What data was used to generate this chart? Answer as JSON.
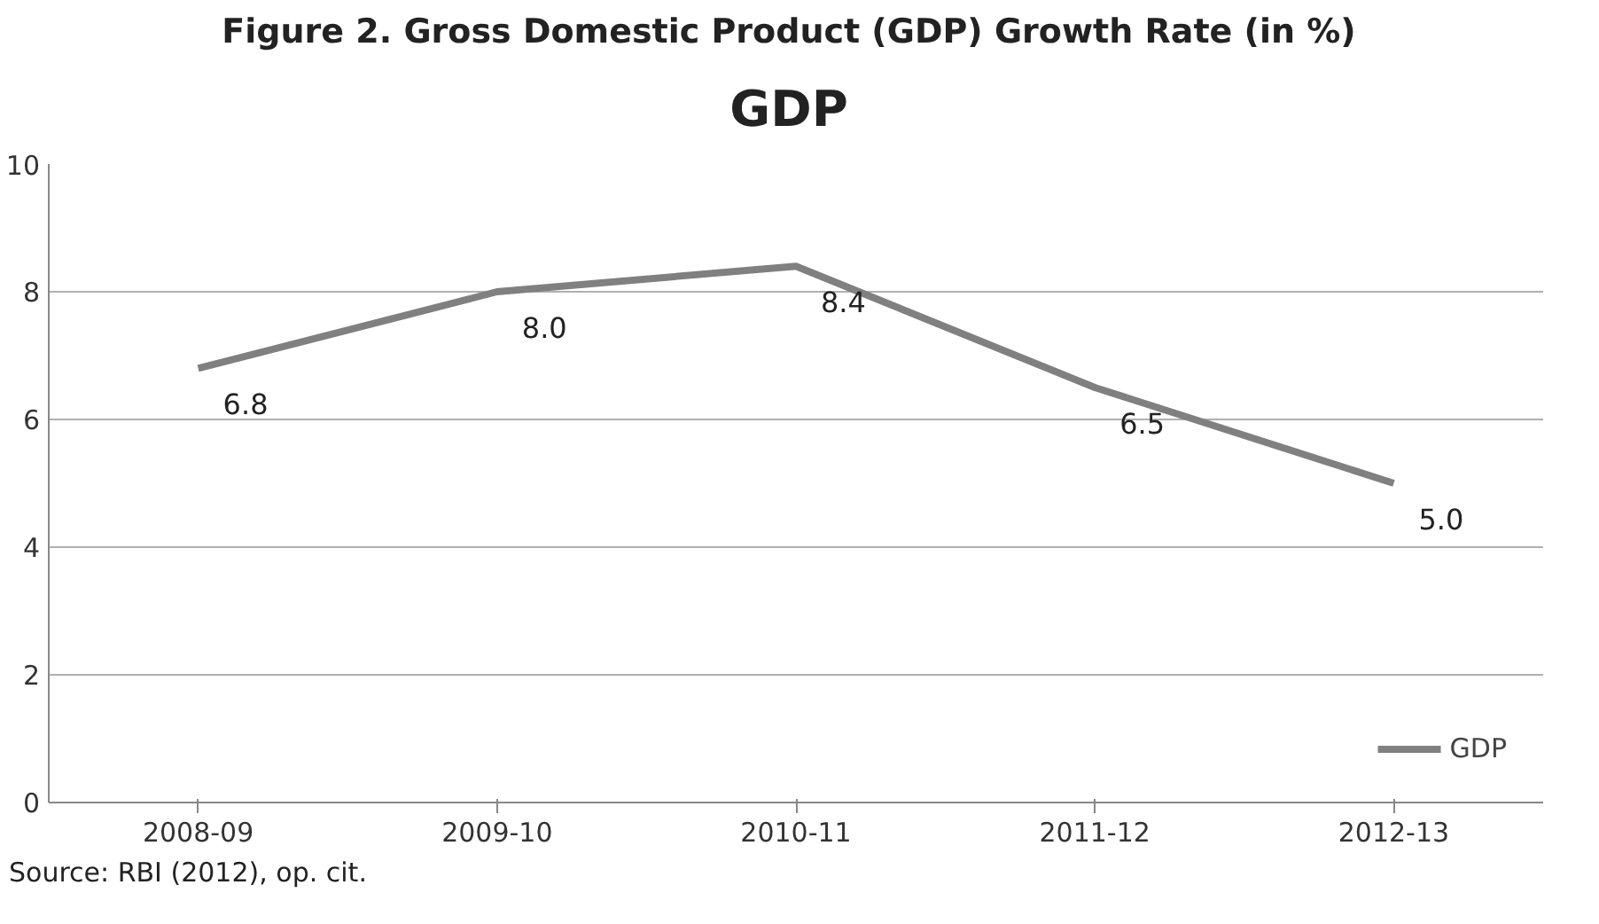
{
  "chart_data": {
    "type": "line",
    "title": "Figure 2. Gross Domestic Product (GDP) Growth Rate (in %)",
    "subtitle": "GDP",
    "categories": [
      "2008-09",
      "2009-10",
      "2010-11",
      "2011-12",
      "2012-13"
    ],
    "series": [
      {
        "name": "GDP",
        "color": "#808080",
        "values": [
          6.8,
          8.0,
          8.4,
          6.5,
          5.0
        ]
      }
    ],
    "value_labels": [
      "6.8",
      "8.0",
      "8.4",
      "6.5",
      "5.0"
    ],
    "ylim": [
      0,
      10
    ],
    "yticks": [
      0,
      2,
      4,
      6,
      8,
      10
    ],
    "grid": "y",
    "legend": "right",
    "marker": "none",
    "line_style": "solid",
    "annotations": [
      "Source: RBI (2012), op. cit."
    ]
  }
}
